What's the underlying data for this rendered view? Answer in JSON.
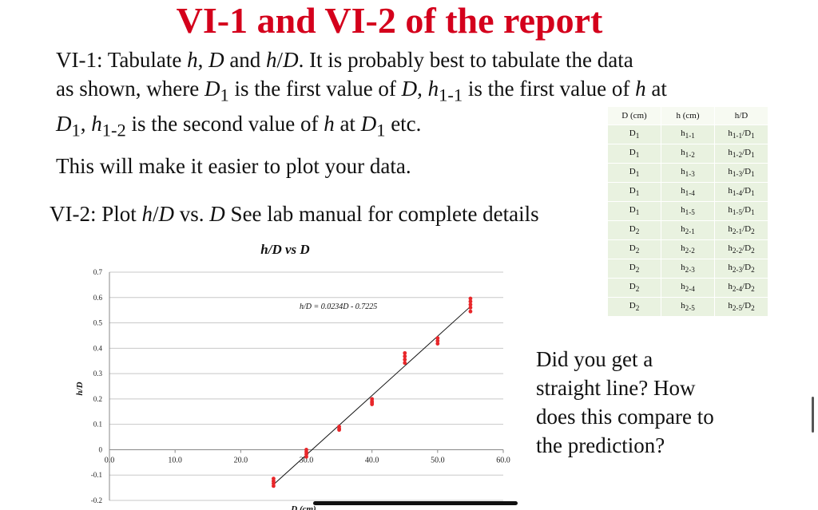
{
  "slide": {
    "title": "VI-1 and VI-2 of the report",
    "vi1_lines": [
      "VI-1:  Tabulate <i>h</i>, <i>D</i> and <i>h</i>/<i>D</i>. It is probably best to tabulate the data",
      "as shown, where <i>D</i><sub>1</sub> is the first value of <i>D</i>, <i>h</i><sub>1-1</sub> is the first value of <i>h</i> at",
      "<i>D</i><sub>1</sub>, <i>h</i><sub>1-2</sub> is the second value of <i>h</i> at <i>D</i><sub>1</sub> etc."
    ],
    "easier_text": "This will make it easier to plot your data.",
    "vi2_text": "VI-2:  Plot <i>h</i>/<i>D</i> vs. <i>D</i>  See lab manual for complete details",
    "question_lines": [
      "Did you get a",
      "straight line? How",
      "does this compare to",
      "the prediction?"
    ]
  },
  "table": {
    "headers": [
      "D (cm)",
      "h (cm)",
      "h/D"
    ],
    "rows": [
      [
        "D<sub>1</sub>",
        "h<sub>1-1</sub>",
        "h<sub>1-1</sub>/D<sub>1</sub>"
      ],
      [
        "D<sub>1</sub>",
        "h<sub>1-2</sub>",
        "h<sub>1-2</sub>/D<sub>1</sub>"
      ],
      [
        "D<sub>1</sub>",
        "h<sub>1-3</sub>",
        "h<sub>1-3</sub>/D<sub>1</sub>"
      ],
      [
        "D<sub>1</sub>",
        "h<sub>1-4</sub>",
        "h<sub>1-4</sub>/D<sub>1</sub>"
      ],
      [
        "D<sub>1</sub>",
        "h<sub>1-5</sub>",
        "h<sub>1-5</sub>/D<sub>1</sub>"
      ],
      [
        "D<sub>2</sub>",
        "h<sub>2-1</sub>",
        "h<sub>2-1</sub>/D<sub>2</sub>"
      ],
      [
        "D<sub>2</sub>",
        "h<sub>2-2</sub>",
        "h<sub>2-2</sub>/D<sub>2</sub>"
      ],
      [
        "D<sub>2</sub>",
        "h<sub>2-3</sub>",
        "h<sub>2-3</sub>/D<sub>2</sub>"
      ],
      [
        "D<sub>2</sub>",
        "h<sub>2-4</sub>",
        "h<sub>2-4</sub>/D<sub>2</sub>"
      ],
      [
        "D<sub>2</sub>",
        "h<sub>2-5</sub>",
        "h<sub>2-5</sub>/D<sub>2</sub>"
      ]
    ]
  },
  "chart_data": {
    "type": "scatter",
    "title": "h/D vs D",
    "xlabel": "D (cm)",
    "ylabel": "h/D",
    "xlim": [
      0,
      60
    ],
    "ylim": [
      -0.2,
      0.7
    ],
    "x_ticks": [
      0,
      10,
      20,
      30,
      40,
      50,
      60
    ],
    "x_tick_labels": [
      "0.0",
      "10.0",
      "20.0",
      "30.0",
      "40.0",
      "50.0",
      "60.0"
    ],
    "y_ticks": [
      -0.2,
      -0.1,
      0,
      0.1,
      0.2,
      0.3,
      0.4,
      0.5,
      0.6,
      0.7
    ],
    "y_tick_labels": [
      "-0.2",
      "-0.1",
      "0",
      "0.1",
      "0.2",
      "0.3",
      "0.4",
      "0.5",
      "0.6",
      "0.7"
    ],
    "grid": "horizontal",
    "marker_color": "#e8272a",
    "series": [
      {
        "points": [
          [
            25,
            -0.143
          ],
          [
            25,
            -0.133
          ],
          [
            25,
            -0.124
          ],
          [
            25,
            -0.114
          ],
          [
            30,
            -0.028
          ],
          [
            30,
            -0.018
          ],
          [
            30,
            -0.009
          ],
          [
            30,
            0.0
          ],
          [
            35,
            0.078
          ],
          [
            35,
            0.083
          ],
          [
            35,
            0.091
          ],
          [
            40,
            0.179
          ],
          [
            40,
            0.185
          ],
          [
            40,
            0.191
          ],
          [
            40,
            0.2
          ],
          [
            45,
            0.342
          ],
          [
            45,
            0.355
          ],
          [
            45,
            0.368
          ],
          [
            45,
            0.381
          ],
          [
            50,
            0.418
          ],
          [
            50,
            0.429
          ],
          [
            50,
            0.44
          ],
          [
            55,
            0.545
          ],
          [
            55,
            0.56
          ],
          [
            55,
            0.572
          ],
          [
            55,
            0.584
          ],
          [
            55,
            0.596
          ]
        ]
      }
    ],
    "trendline": {
      "slope": 0.0234,
      "intercept": -0.7225,
      "x_range": [
        25,
        55
      ],
      "equation": "h/D = 0.0234D - 0.7225"
    }
  }
}
